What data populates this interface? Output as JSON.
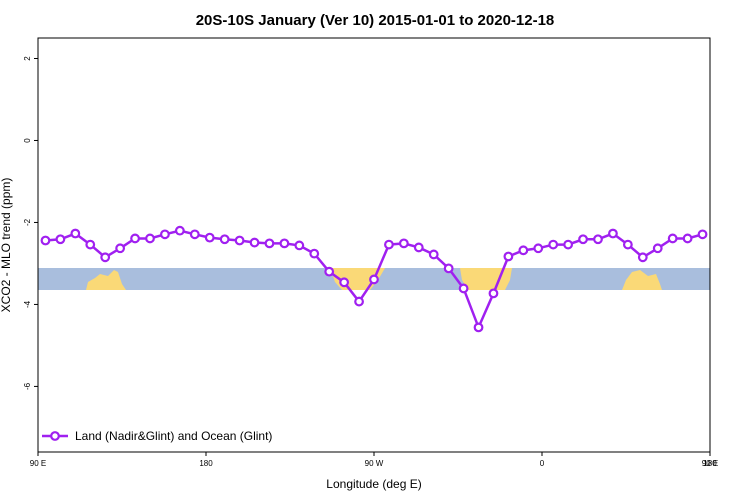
{
  "chart_data": {
    "type": "line",
    "title": "20S-10S January (Ver 10)   2015-01-01 to 2020-12-18",
    "xlabel": "Longitude (deg E)",
    "ylabel": "XCO2 - MLO trend (ppm)",
    "x": [
      94,
      102,
      110,
      118,
      126,
      134,
      142,
      150,
      158,
      166,
      174,
      182,
      190,
      198,
      206,
      214,
      222,
      230,
      238,
      246,
      254,
      262,
      270,
      278,
      286,
      294,
      302,
      310,
      318,
      326,
      334,
      342,
      350,
      358,
      366,
      374,
      382,
      390,
      398,
      406,
      414,
      422,
      430,
      438,
      446
    ],
    "series": [
      {
        "name": "Land (Nadir&Glint) and Ocean (Glint)",
        "color": "#a020f0",
        "values": [
          -2.44,
          -2.41,
          -2.27,
          -2.54,
          -2.85,
          -2.63,
          -2.39,
          -2.39,
          -2.29,
          -2.2,
          -2.29,
          -2.37,
          -2.41,
          -2.44,
          -2.49,
          -2.51,
          -2.51,
          -2.56,
          -2.76,
          -3.2,
          -3.46,
          -3.93,
          -3.39,
          -2.54,
          -2.51,
          -2.61,
          -2.78,
          -3.12,
          -3.61,
          -4.56,
          -3.73,
          -2.83,
          -2.68,
          -2.63,
          -2.54,
          -2.54,
          -2.41,
          -2.41,
          -2.27,
          -2.54,
          -2.85,
          -2.63,
          -2.39,
          -2.39,
          -2.29
        ]
      }
    ],
    "xlim": [
      90,
      450
    ],
    "xticks": [
      {
        "value": 90,
        "label": "90 E"
      },
      180,
      {
        "value": 270,
        "label": "90 W"
      },
      {
        "value": 360,
        "label": "0"
      },
      {
        "value": 450,
        "label": "90 E"
      },
      {
        "value": 540,
        "label": "180"
      }
    ],
    "ylim": [
      -7.6,
      2.5
    ],
    "yticks": [
      -6,
      -4,
      -2,
      0,
      2
    ],
    "legend": "bottom-left"
  }
}
